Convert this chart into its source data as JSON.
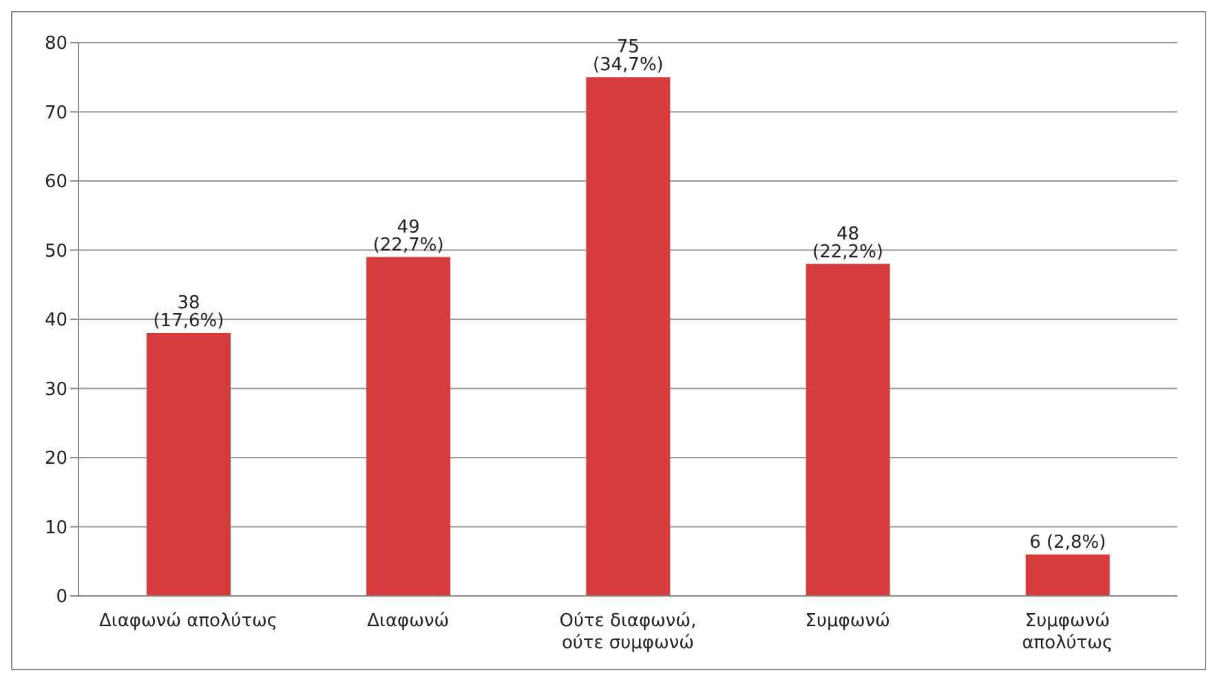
{
  "chart_data": {
    "type": "bar",
    "categories": [
      "Διαφωνώ απολύτως",
      "Διαφωνώ",
      "Ούτε διαφωνώ,\nούτε συμφωνώ",
      "Συμφωνώ",
      "Συμφωνώ\nαπολύτως"
    ],
    "values": [
      38,
      49,
      75,
      48,
      6
    ],
    "value_labels": [
      "38 (17,6%)",
      "49 (22,7%)",
      "75 (34,7%)",
      "48 (22,2%)",
      "6 (2,8%)"
    ],
    "color": "#d63c3c",
    "ylim": [
      0,
      80
    ],
    "yticks": [
      0,
      10,
      20,
      30,
      40,
      50,
      60,
      70,
      80
    ],
    "grid": "y",
    "legend": false
  }
}
